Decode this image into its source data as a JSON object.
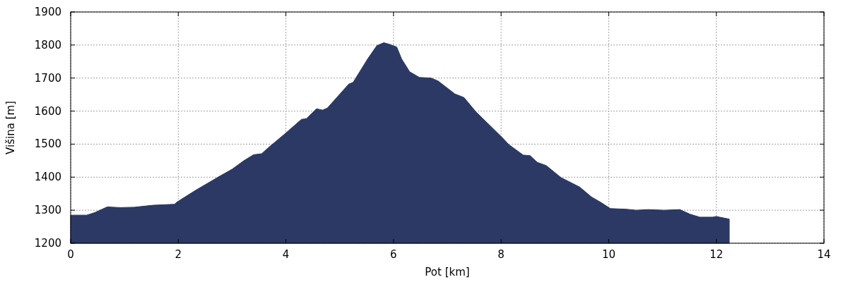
{
  "chart_data": {
    "type": "area",
    "xlabel": "Pot [km]",
    "ylabel": "Višina [m]",
    "x": [
      0,
      0.3,
      0.45,
      0.68,
      0.92,
      1.18,
      1.53,
      1.93,
      1.97,
      2.32,
      2.76,
      3.0,
      3.22,
      3.4,
      3.55,
      3.68,
      3.98,
      4.29,
      4.38,
      4.57,
      4.68,
      4.77,
      5.17,
      5.25,
      5.52,
      5.69,
      5.82,
      5.93,
      6.06,
      6.15,
      6.3,
      6.48,
      6.7,
      6.83,
      7.14,
      7.31,
      7.53,
      8.02,
      8.14,
      8.41,
      8.54,
      8.67,
      8.84,
      9.11,
      9.46,
      9.68,
      9.85,
      10.03,
      10.33,
      10.51,
      10.73,
      11.03,
      11.32,
      11.51,
      11.69,
      11.93,
      12.0,
      12.24
    ],
    "series": [
      {
        "color": "#2b3964",
        "values": [
          1285,
          1285,
          1293,
          1310,
          1308,
          1309,
          1315,
          1318,
          1324,
          1360,
          1402,
          1424,
          1450,
          1468,
          1471,
          1490,
          1531,
          1575,
          1577,
          1607,
          1603,
          1609,
          1682,
          1687,
          1758,
          1798,
          1807,
          1802,
          1794,
          1758,
          1719,
          1702,
          1700,
          1691,
          1652,
          1641,
          1598,
          1520,
          1499,
          1467,
          1465,
          1445,
          1435,
          1399,
          1370,
          1340,
          1324,
          1305,
          1303,
          1300,
          1302,
          1300,
          1302,
          1288,
          1279,
          1279,
          1281,
          1273
        ]
      }
    ],
    "xlim": [
      0,
      14
    ],
    "xticks": [
      0,
      2,
      4,
      6,
      8,
      10,
      12,
      14
    ],
    "ylim": [
      1200,
      1900
    ],
    "yticks": [
      1200,
      1300,
      1400,
      1500,
      1600,
      1700,
      1800,
      1900
    ],
    "grid": true
  }
}
